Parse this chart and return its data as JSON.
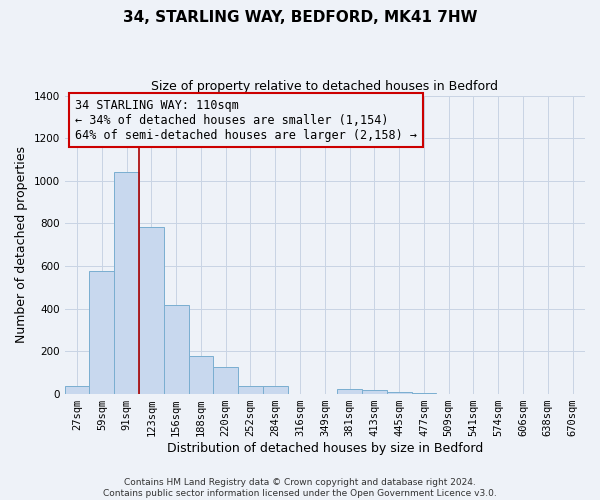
{
  "title": "34, STARLING WAY, BEDFORD, MK41 7HW",
  "subtitle": "Size of property relative to detached houses in Bedford",
  "xlabel": "Distribution of detached houses by size in Bedford",
  "ylabel": "Number of detached properties",
  "bar_labels": [
    "27sqm",
    "59sqm",
    "91sqm",
    "123sqm",
    "156sqm",
    "188sqm",
    "220sqm",
    "252sqm",
    "284sqm",
    "316sqm",
    "349sqm",
    "381sqm",
    "413sqm",
    "445sqm",
    "477sqm",
    "509sqm",
    "541sqm",
    "574sqm",
    "606sqm",
    "638sqm",
    "670sqm"
  ],
  "bar_values": [
    40,
    575,
    1040,
    785,
    420,
    180,
    125,
    40,
    40,
    0,
    0,
    25,
    20,
    10,
    5,
    0,
    0,
    0,
    0,
    0,
    0
  ],
  "bar_color": "#c8d8ee",
  "bar_edge_color": "#7aaed0",
  "ylim": [
    0,
    1400
  ],
  "yticks": [
    0,
    200,
    400,
    600,
    800,
    1000,
    1200,
    1400
  ],
  "annotation_line1": "34 STARLING WAY: 110sqm",
  "annotation_line2": "← 34% of detached houses are smaller (1,154)",
  "annotation_line3": "64% of semi-detached houses are larger (2,158) →",
  "vline_color": "#aa0000",
  "footer1": "Contains HM Land Registry data © Crown copyright and database right 2024.",
  "footer2": "Contains public sector information licensed under the Open Government Licence v3.0.",
  "background_color": "#eef2f8",
  "grid_color": "#c8d4e4",
  "annotation_box_edge": "#cc0000",
  "title_fontsize": 11,
  "subtitle_fontsize": 9,
  "axis_label_fontsize": 9,
  "tick_fontsize": 7.5,
  "annotation_fontsize": 8.5,
  "footer_fontsize": 6.5,
  "vline_x": 2.5
}
